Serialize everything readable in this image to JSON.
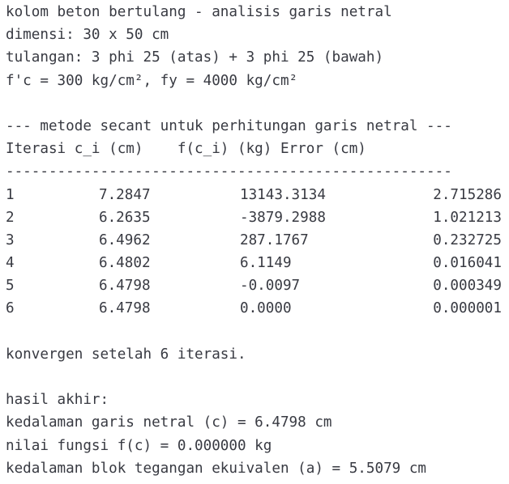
{
  "header": {
    "title": "kolom beton bertulang - analisis garis netral",
    "dimensions": "dimensi: 30 x 50 cm",
    "reinforcement": "tulangan: 3 phi 25 (atas) + 3 phi 25 (bawah)",
    "materials": "f'c = 300 kg/cm², fy = 4000 kg/cm²"
  },
  "method": {
    "section_title": "--- metode secant untuk perhitungan garis netral ---",
    "table_header": "Iterasi c_i (cm)    f(c_i) (kg) Error (cm)",
    "separator": "----------------------------------------------------",
    "columns": [
      "Iterasi",
      "c_i (cm)",
      "f(c_i) (kg)",
      "Error (cm)"
    ],
    "rows": [
      {
        "iter": "1",
        "ci": "7.2847",
        "f": "13143.3134",
        "err": "2.715286"
      },
      {
        "iter": "2",
        "ci": "6.2635",
        "f": "-3879.2988",
        "err": "1.021213"
      },
      {
        "iter": "3",
        "ci": "6.4962",
        "f": "287.1767",
        "err": "0.232725"
      },
      {
        "iter": "4",
        "ci": "6.4802",
        "f": "6.1149",
        "err": "0.016041"
      },
      {
        "iter": "5",
        "ci": "6.4798",
        "f": "-0.0097",
        "err": "0.000349"
      },
      {
        "iter": "6",
        "ci": "6.4798",
        "f": "0.0000",
        "err": "0.000001"
      }
    ],
    "convergence": "konvergen setelah 6 iterasi."
  },
  "result": {
    "heading": "hasil akhir:",
    "neutral_axis": "kedalaman garis netral (c) = 6.4798 cm",
    "function_value": "nilai fungsi f(c) = 0.000000 kg",
    "stress_block": "kedalaman blok tegangan ekuivalen (a) = 5.5079 cm"
  }
}
